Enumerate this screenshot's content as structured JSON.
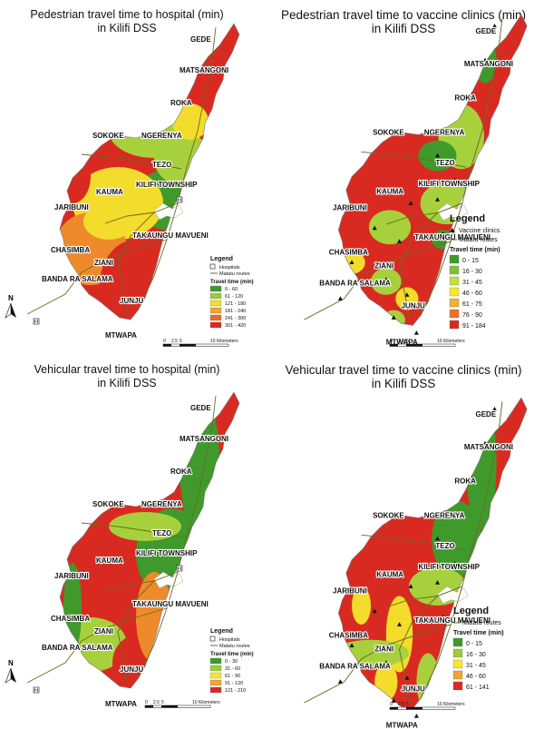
{
  "maps": [
    {
      "title_line1": "Pedestrian travel time to hospital (min)",
      "title_line2": "in Kilifi DSS",
      "legend": {
        "title": "Legend",
        "facility_label": "Hospitals",
        "routes_label": "Matatu routes",
        "travel_title": "Travel time (min)",
        "classes": [
          {
            "label": "0 - 60",
            "color": "#3f9a2b"
          },
          {
            "label": "61 - 120",
            "color": "#9ccb3b"
          },
          {
            "label": "121 - 180",
            "color": "#f2e12a"
          },
          {
            "label": "181 - 240",
            "color": "#f1a52f"
          },
          {
            "label": "241 - 300",
            "color": "#e86a2a"
          },
          {
            "label": "301 - 420",
            "color": "#d92a22"
          }
        ]
      },
      "scale_labels": [
        "0",
        "2.5",
        "5",
        "10 Kilometers"
      ]
    },
    {
      "title_line1": "Pedestrian travel time to vaccine clinics (min)",
      "title_line2": "in Kilifi DSS",
      "legend": {
        "title": "Legend",
        "facility_label": "Vaccine clinics",
        "routes_label": "Matatu routes",
        "travel_title": "Travel time (min)",
        "classes": [
          {
            "label": "0 - 15",
            "color": "#3f9a2b"
          },
          {
            "label": "16 - 30",
            "color": "#7fbf3a"
          },
          {
            "label": "31 - 45",
            "color": "#c3de3d"
          },
          {
            "label": "46 - 60",
            "color": "#f5e82c"
          },
          {
            "label": "61 - 75",
            "color": "#f4b030"
          },
          {
            "label": "76 - 90",
            "color": "#ea6f2a"
          },
          {
            "label": "91 - 184",
            "color": "#d92a22"
          }
        ]
      },
      "scale_labels": [
        "0",
        "2.5",
        "5",
        "10 Kilometers"
      ]
    },
    {
      "title_line1": "Vehicular travel time to hospital (min)",
      "title_line2": "in Kilifi DSS",
      "legend": {
        "title": "Legend",
        "facility_label": "Hospitals",
        "routes_label": "Matatu routes",
        "travel_title": "Travel time (min)",
        "classes": [
          {
            "label": "0 - 30",
            "color": "#3f9a2b"
          },
          {
            "label": "31 - 60",
            "color": "#9ccb3b"
          },
          {
            "label": "61 - 90",
            "color": "#f5e82c"
          },
          {
            "label": "91 - 120",
            "color": "#f1a52f"
          },
          {
            "label": "121 - 210",
            "color": "#d92a22"
          }
        ]
      },
      "scale_labels": [
        "0",
        "2.5",
        "5",
        "10 Kilometers"
      ]
    },
    {
      "title_line1": "Vehicular travel time to vaccine clinics (min)",
      "title_line2": "in Kilifi DSS",
      "legend": {
        "title": "Legend",
        "facility_label": "",
        "routes_label": "Matatu routes",
        "travel_title": "Travel time (min)",
        "classes": [
          {
            "label": "0 - 15",
            "color": "#3f9a2b"
          },
          {
            "label": "16 - 30",
            "color": "#9ccb3b"
          },
          {
            "label": "31 - 45",
            "color": "#f5e82c"
          },
          {
            "label": "46 - 60",
            "color": "#f1a52f"
          },
          {
            "label": "61 - 141",
            "color": "#d92a22"
          }
        ]
      },
      "scale_labels": [
        "0",
        "2.5",
        "5",
        "10 Kilometers"
      ]
    }
  ],
  "places": [
    "GEDE",
    "MATSANGONI",
    "ROKA",
    "SOKOKE",
    "NGERENYA",
    "TEZO",
    "KILIFI TOWNSHIP",
    "KAUMA",
    "JARIBUNI",
    "TAKAUNGU MAVUENI",
    "CHASIMBA",
    "ZIANI",
    "BANDA RA SALAMA",
    "JUNJU",
    "MTWAPA"
  ],
  "north_label": "N",
  "colors": {
    "red": "#d92a22",
    "orange": "#ef8a2c",
    "yellow": "#f3dc2b",
    "lightgreen": "#a7d13c",
    "green": "#3f9a2b",
    "route": "#6b6b1f",
    "water": "#ffffff"
  }
}
